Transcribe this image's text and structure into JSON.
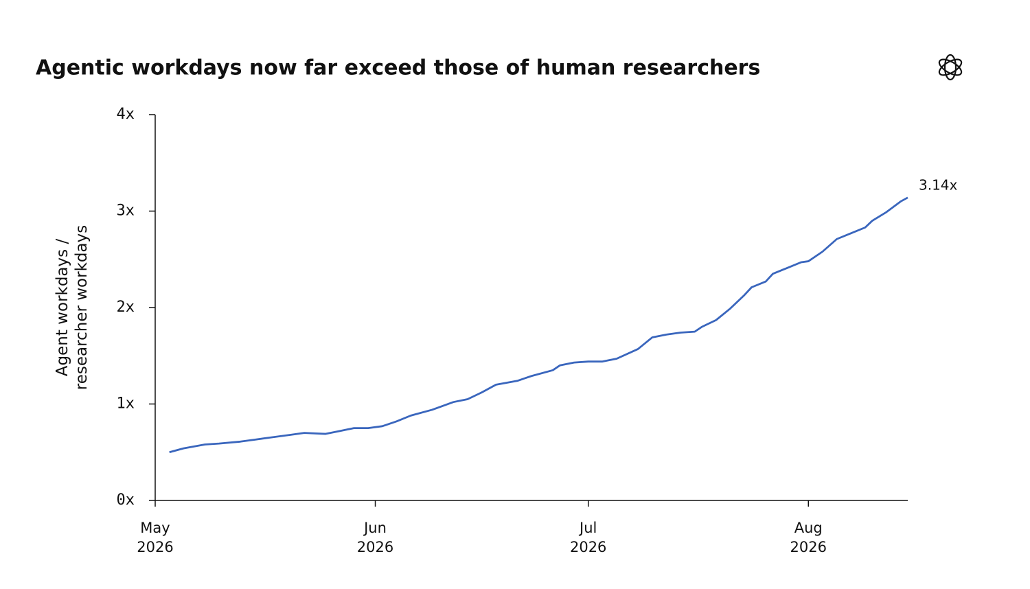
{
  "chart_data": {
    "type": "line",
    "title": "Agentic workdays now far exceed those of human researchers",
    "y_label": "Agent workdays /\nresearcher workdays",
    "x": [
      2,
      4,
      7,
      9,
      12,
      14,
      16,
      19,
      21,
      24,
      26,
      28,
      30,
      32,
      34,
      36,
      39,
      42,
      44,
      46,
      48,
      51,
      53,
      56,
      57,
      59,
      61,
      63,
      65,
      68,
      70,
      72,
      74,
      76,
      77,
      79,
      81,
      83,
      84,
      86,
      87,
      89,
      91,
      92,
      94,
      96,
      98,
      100,
      101,
      103,
      105,
      106
    ],
    "series": [
      {
        "name": "Agent workdays / researcher workdays",
        "color": "#3a66bd",
        "values": [
          0.5,
          0.54,
          0.58,
          0.59,
          0.61,
          0.63,
          0.65,
          0.68,
          0.7,
          0.69,
          0.72,
          0.75,
          0.75,
          0.77,
          0.82,
          0.88,
          0.94,
          1.02,
          1.05,
          1.12,
          1.2,
          1.24,
          1.29,
          1.35,
          1.4,
          1.43,
          1.44,
          1.44,
          1.47,
          1.57,
          1.69,
          1.72,
          1.74,
          1.75,
          1.8,
          1.87,
          1.99,
          2.13,
          2.21,
          2.27,
          2.35,
          2.41,
          2.47,
          2.48,
          2.58,
          2.71,
          2.77,
          2.83,
          2.9,
          2.99,
          3.1,
          3.14
        ],
        "value_labels": [
          null,
          null,
          null,
          null,
          null,
          null,
          null,
          null,
          null,
          null,
          null,
          null,
          null,
          null,
          null,
          null,
          null,
          null,
          null,
          null,
          null,
          null,
          null,
          null,
          null,
          null,
          null,
          null,
          null,
          null,
          null,
          null,
          null,
          null,
          null,
          null,
          null,
          null,
          null,
          null,
          null,
          null,
          null,
          null,
          null,
          null,
          null,
          null,
          null,
          null,
          null,
          "3.14x"
        ]
      }
    ],
    "xlim": [
      0,
      106
    ],
    "xticks": [
      {
        "value": 0,
        "label": "May\n2026"
      },
      {
        "value": 31,
        "label": "Jun\n2026"
      },
      {
        "value": 61,
        "label": "Jul\n2026"
      },
      {
        "value": 92,
        "label": "Aug\n2026"
      }
    ],
    "ylim": [
      0,
      4
    ],
    "yticks": [
      {
        "value": 0,
        "label": "0x"
      },
      {
        "value": 1,
        "label": "1x"
      },
      {
        "value": 2,
        "label": "2x"
      },
      {
        "value": 3,
        "label": "3x"
      },
      {
        "value": 4,
        "label": "4x"
      }
    ],
    "grid": false
  }
}
